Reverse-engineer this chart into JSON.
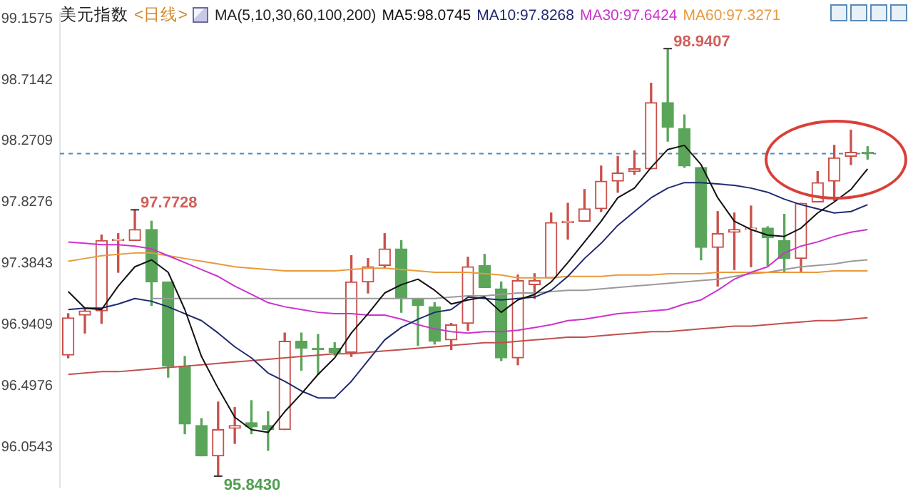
{
  "chart_data": {
    "type": "candlestick",
    "title": "美元指数",
    "subtitle": "<日线>",
    "legend_title": "MA(5,10,30,60,100,200)",
    "legend": "top",
    "tick_labels": "y",
    "marker": "none",
    "categories": [
      null,
      null,
      null,
      null,
      null,
      null,
      null,
      null,
      null,
      null,
      null,
      null,
      null,
      null,
      null,
      null,
      null,
      null,
      null,
      null,
      null,
      null,
      null,
      null,
      null,
      null,
      null,
      null,
      null,
      null,
      null,
      null,
      null,
      null,
      null,
      null,
      null,
      null,
      null,
      null,
      null,
      null,
      null,
      null,
      null,
      null,
      null,
      null,
      null
    ],
    "ohlc": [
      [
        96.72,
        97.02,
        96.7,
        96.99
      ],
      [
        97.01,
        97.06,
        96.88,
        97.04
      ],
      [
        97.04,
        97.59,
        96.95,
        97.55
      ],
      [
        97.55,
        97.6,
        97.32,
        97.56
      ],
      [
        97.55,
        97.7728,
        97.55,
        97.63
      ],
      [
        97.63,
        97.69,
        97.08,
        97.25
      ],
      [
        97.25,
        97.25,
        96.56,
        96.64
      ],
      [
        96.64,
        96.71,
        96.15,
        96.22
      ],
      [
        96.21,
        96.26,
        95.99,
        95.99
      ],
      [
        95.99,
        96.38,
        95.843,
        96.18
      ],
      [
        96.19,
        96.34,
        96.08,
        96.21
      ],
      [
        96.23,
        96.39,
        96.15,
        96.2
      ],
      [
        96.21,
        96.31,
        96.03,
        96.18
      ],
      [
        96.18,
        96.88,
        96.18,
        96.82
      ],
      [
        96.82,
        96.88,
        96.61,
        96.77
      ],
      [
        96.77,
        96.87,
        96.58,
        96.76
      ],
      [
        96.77,
        96.81,
        96.72,
        96.74
      ],
      [
        96.74,
        97.44,
        96.71,
        97.25
      ],
      [
        97.25,
        97.42,
        97.17,
        97.36
      ],
      [
        97.37,
        97.6,
        97.35,
        97.49
      ],
      [
        97.49,
        97.55,
        97.03,
        97.13
      ],
      [
        97.13,
        97.13,
        96.79,
        97.08
      ],
      [
        97.07,
        97.1,
        96.8,
        96.82
      ],
      [
        96.83,
        96.95,
        96.76,
        96.94
      ],
      [
        96.95,
        97.43,
        96.9,
        97.36
      ],
      [
        97.37,
        97.45,
        97.21,
        97.21
      ],
      [
        97.2,
        97.25,
        96.68,
        96.7
      ],
      [
        96.7,
        97.3,
        96.65,
        97.26
      ],
      [
        97.23,
        97.31,
        97.13,
        97.26
      ],
      [
        97.28,
        97.75,
        97.28,
        97.68
      ],
      [
        97.68,
        97.82,
        97.56,
        97.69
      ],
      [
        97.69,
        97.92,
        97.69,
        97.78
      ],
      [
        97.78,
        98.09,
        97.76,
        97.98
      ],
      [
        97.98,
        98.16,
        97.9,
        98.04
      ],
      [
        98.05,
        98.2,
        98.03,
        98.07
      ],
      [
        98.07,
        98.69,
        98.07,
        98.55
      ],
      [
        98.55,
        98.9407,
        98.27,
        98.37
      ],
      [
        98.36,
        98.46,
        98.08,
        98.09
      ],
      [
        98.08,
        98.08,
        97.41,
        97.5
      ],
      [
        97.5,
        97.76,
        97.22,
        97.6
      ],
      [
        97.61,
        97.75,
        97.34,
        97.63
      ],
      [
        97.63,
        97.8,
        97.36,
        97.64
      ],
      [
        97.64,
        97.65,
        97.37,
        97.57
      ],
      [
        97.55,
        97.74,
        97.32,
        97.42
      ],
      [
        97.42,
        97.82,
        97.32,
        97.82
      ],
      [
        97.83,
        98.05,
        97.83,
        97.97
      ],
      [
        97.98,
        98.24,
        97.84,
        98.15
      ],
      [
        98.16,
        98.35,
        98.1,
        98.19
      ],
      [
        98.19,
        98.23,
        98.14,
        98.18
      ]
    ],
    "series": [
      {
        "type": "line",
        "name": "MA5:98.0745",
        "color": "#111111",
        "values": [
          97.18,
          97.06,
          97.05,
          97.22,
          97.36,
          97.41,
          97.32,
          97.05,
          96.71,
          96.48,
          96.27,
          96.18,
          96.16,
          96.31,
          96.44,
          96.58,
          96.7,
          96.88,
          97.02,
          97.17,
          97.23,
          97.27,
          97.19,
          97.09,
          97.12,
          97.14,
          97.03,
          97.12,
          97.16,
          97.25,
          97.39,
          97.54,
          97.69,
          97.86,
          97.93,
          98.08,
          98.21,
          98.24,
          98.1,
          97.86,
          97.69,
          97.63,
          97.59,
          97.58,
          97.64,
          97.75,
          97.83,
          97.92,
          98.07
        ]
      },
      {
        "type": "line",
        "name": "MA10:97.8268",
        "color": "#1f2a6e",
        "values": [
          97.05,
          97.06,
          97.06,
          97.09,
          97.13,
          97.11,
          97.07,
          97.02,
          96.97,
          96.88,
          96.78,
          96.7,
          96.59,
          96.53,
          96.46,
          96.41,
          96.41,
          96.53,
          96.68,
          96.83,
          96.92,
          96.98,
          97.03,
          97.05,
          97.14,
          97.13,
          97.12,
          97.13,
          97.14,
          97.19,
          97.29,
          97.42,
          97.53,
          97.66,
          97.76,
          97.86,
          97.93,
          97.97,
          97.97,
          97.96,
          97.95,
          97.93,
          97.9,
          97.85,
          97.81,
          97.78,
          97.75,
          97.76,
          97.81
        ]
      },
      {
        "type": "line",
        "name": "MA30:97.6424",
        "color": "#cc33cc",
        "values": [
          97.54,
          97.53,
          97.52,
          97.52,
          97.51,
          97.49,
          97.44,
          97.39,
          97.34,
          97.29,
          97.22,
          97.16,
          97.1,
          97.07,
          97.05,
          97.03,
          97.02,
          97.02,
          97.01,
          97.01,
          96.98,
          96.94,
          96.91,
          96.89,
          96.88,
          96.89,
          96.89,
          96.9,
          96.92,
          96.94,
          96.97,
          96.98,
          97.0,
          97.02,
          97.03,
          97.04,
          97.05,
          97.09,
          97.12,
          97.19,
          97.27,
          97.32,
          97.36,
          97.46,
          97.51,
          97.54,
          97.58,
          97.61,
          97.63
        ]
      },
      {
        "type": "line",
        "name": "MA60:97.3271",
        "color": "#e89a3c",
        "values": [
          97.4,
          97.42,
          97.44,
          97.45,
          97.46,
          97.46,
          97.44,
          97.42,
          97.4,
          97.38,
          97.36,
          97.35,
          97.34,
          97.33,
          97.33,
          97.33,
          97.33,
          97.34,
          97.35,
          97.35,
          97.34,
          97.33,
          97.32,
          97.32,
          97.32,
          97.31,
          97.3,
          97.28,
          97.28,
          97.28,
          97.29,
          97.29,
          97.29,
          97.3,
          97.3,
          97.3,
          97.31,
          97.31,
          97.31,
          97.32,
          97.32,
          97.32,
          97.32,
          97.32,
          97.32,
          97.32,
          97.33,
          97.33,
          97.33
        ]
      },
      {
        "type": "line",
        "color": "#9a9a9a",
        "values": [
          null,
          null,
          null,
          null,
          null,
          97.13,
          97.13,
          97.13,
          97.13,
          97.13,
          97.13,
          97.13,
          97.13,
          97.13,
          97.13,
          97.13,
          97.13,
          97.13,
          97.13,
          97.13,
          97.13,
          97.13,
          97.13,
          97.14,
          97.15,
          97.15,
          97.16,
          97.17,
          97.17,
          97.18,
          97.19,
          97.19,
          97.2,
          97.21,
          97.22,
          97.23,
          97.24,
          97.25,
          97.26,
          97.27,
          97.29,
          97.31,
          97.32,
          97.34,
          97.36,
          97.37,
          97.38,
          97.4,
          97.41
        ]
      },
      {
        "type": "line",
        "color": "#c0504d",
        "values": [
          96.58,
          96.59,
          96.6,
          96.6,
          96.61,
          96.62,
          96.63,
          96.64,
          96.65,
          96.66,
          96.67,
          96.68,
          96.69,
          96.7,
          96.71,
          96.72,
          96.73,
          96.73,
          96.74,
          96.75,
          96.76,
          96.77,
          96.78,
          96.79,
          96.8,
          96.81,
          96.81,
          96.82,
          96.83,
          96.84,
          96.85,
          96.85,
          96.86,
          96.87,
          96.88,
          96.89,
          96.89,
          96.9,
          96.91,
          96.92,
          96.93,
          96.93,
          96.94,
          96.95,
          96.96,
          96.97,
          96.97,
          96.98,
          96.99
        ]
      }
    ],
    "ylim": [
      95.76,
      99.2
    ],
    "yticks": [
      96.0543,
      96.4976,
      96.9409,
      97.3843,
      97.8276,
      98.2709,
      98.7142,
      99.1575
    ],
    "ref_lines": [
      {
        "axis": "y",
        "value": 98.18,
        "color": "#4a8cc0",
        "line_style": "dashed"
      }
    ],
    "annotations": [
      "97.7728",
      "98.9407",
      "95.8430"
    ]
  }
}
